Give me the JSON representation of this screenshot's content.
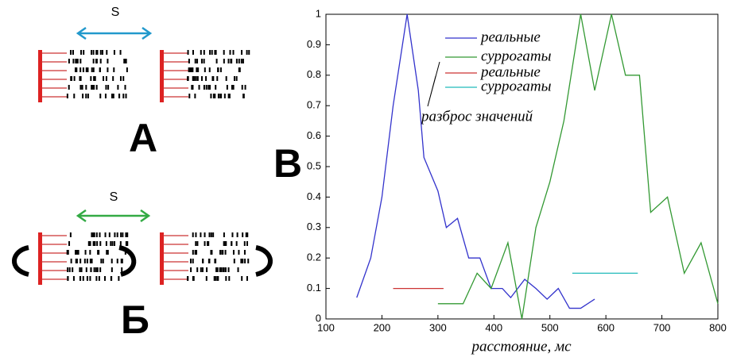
{
  "panels": {
    "s_top": "S",
    "a_label": "А",
    "s_bottom": "S",
    "b_label": "Б",
    "c_label": "В"
  },
  "chart_data": {
    "type": "line",
    "xlabel": "расстояние, мс",
    "annotation": "разброс значений",
    "xlim": [
      100,
      800
    ],
    "xticks": [
      100,
      200,
      300,
      400,
      500,
      600,
      700,
      800
    ],
    "ylim": [
      0,
      1
    ],
    "yticks": [
      0,
      0.1,
      0.2,
      0.3,
      0.4,
      0.5,
      0.6,
      0.7,
      0.8,
      0.9,
      1
    ],
    "series": [
      {
        "name": "реальные",
        "color": "#3333cc",
        "x": [
          155,
          180,
          200,
          220,
          245,
          265,
          275,
          300,
          315,
          335,
          355,
          375,
          395,
          415,
          430,
          455,
          475,
          495,
          515,
          535,
          555,
          580
        ],
        "values": [
          0.07,
          0.2,
          0.4,
          0.7,
          1,
          0.75,
          0.53,
          0.42,
          0.3,
          0.33,
          0.2,
          0.2,
          0.1,
          0.1,
          0.07,
          0.13,
          0.1,
          0.065,
          0.1,
          0.035,
          0.035,
          0.065
        ]
      },
      {
        "name": "суррогаты",
        "color": "#339933",
        "x": [
          300,
          345,
          370,
          395,
          425,
          450,
          475,
          500,
          525,
          555,
          580,
          610,
          635,
          660,
          680,
          710,
          740,
          770,
          800
        ],
        "values": [
          0.05,
          0.05,
          0.15,
          0.1,
          0.25,
          0,
          0.3,
          0.45,
          0.65,
          1,
          0.75,
          1,
          0.8,
          0.8,
          0.35,
          0.4,
          0.15,
          0.25,
          0.05
        ]
      },
      {
        "name": "реальные",
        "color": "#cc3333",
        "x": [
          220,
          310
        ],
        "values": [
          0.1,
          0.1
        ]
      },
      {
        "name": "суррогаты",
        "color": "#22bbbb",
        "x": [
          540,
          657
        ],
        "values": [
          0.15,
          0.15
        ]
      }
    ]
  }
}
